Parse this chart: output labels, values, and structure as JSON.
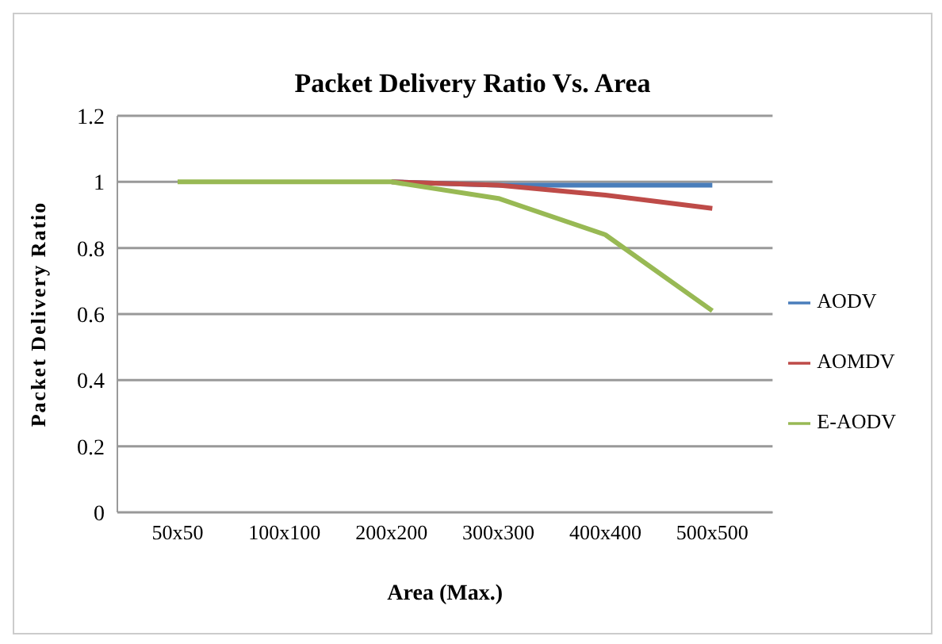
{
  "chart_data": {
    "type": "line",
    "title": "Packet Delivery Ratio Vs. Area",
    "xlabel": "Area (Max.)",
    "ylabel": "Packet Delivery Ratio",
    "categories": [
      "50x50",
      "100x100",
      "200x200",
      "300x300",
      "400x400",
      "500x500"
    ],
    "series": [
      {
        "name": "AODV",
        "color": "#4a7ebb",
        "values": [
          null,
          null,
          1,
          0.99,
          0.99,
          0.99
        ]
      },
      {
        "name": "AOMDV",
        "color": "#be4b48",
        "values": [
          null,
          null,
          1,
          0.99,
          0.96,
          0.92
        ]
      },
      {
        "name": "E-AODV",
        "color": "#98b954",
        "values": [
          1,
          1,
          1,
          0.95,
          0.84,
          0.61
        ]
      }
    ],
    "ylim": [
      0,
      1.2
    ],
    "yticks": [
      0,
      0.2,
      0.4,
      0.6,
      0.8,
      1,
      1.2
    ],
    "grid": "y",
    "legend": "right",
    "marker": "none",
    "line_style": "solid"
  }
}
